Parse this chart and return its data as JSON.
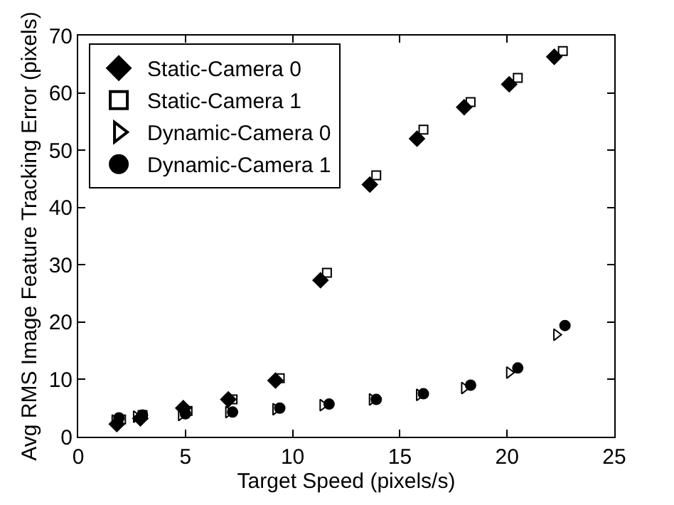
{
  "chart_data": {
    "type": "scatter",
    "xlabel": "Target Speed (pixels/s)",
    "ylabel": "Avg RMS Image Feature Tracking Error (pixels)",
    "xlim": [
      0,
      25
    ],
    "xticks": [
      0,
      5,
      10,
      15,
      20,
      25
    ],
    "ylim": [
      0,
      70
    ],
    "yticks": [
      0,
      10,
      20,
      30,
      40,
      50,
      60,
      70
    ],
    "legend": "top left",
    "series": [
      {
        "name": "Static-Camera 0",
        "color": "#000000",
        "marker": "diamond",
        "x": [
          1.8,
          2.9,
          4.9,
          7.0,
          9.2,
          11.3,
          13.6,
          15.8,
          18.0,
          20.1,
          22.2
        ],
        "values": [
          2.2,
          3.2,
          5.0,
          6.5,
          9.8,
          27.3,
          44.0,
          52.0,
          57.5,
          61.5,
          66.3
        ]
      },
      {
        "name": "Static-Camera 1",
        "color": "#000000",
        "marker": "square-open",
        "x": [
          2.0,
          3.0,
          5.1,
          7.2,
          9.4,
          11.6,
          13.9,
          16.1,
          18.3,
          20.5,
          22.6
        ],
        "values": [
          3.0,
          3.8,
          4.5,
          6.5,
          10.2,
          28.6,
          45.6,
          53.6,
          58.4,
          62.6,
          67.3
        ]
      },
      {
        "name": "Dynamic-Camera 0",
        "color": "#000000",
        "marker": "triangle-open",
        "x": [
          1.7,
          2.7,
          4.8,
          7.0,
          9.2,
          11.4,
          13.7,
          15.9,
          18.0,
          20.1,
          22.3
        ],
        "values": [
          2.8,
          3.5,
          3.8,
          4.3,
          4.8,
          5.5,
          6.5,
          7.3,
          8.5,
          11.2,
          17.8
        ]
      },
      {
        "name": "Dynamic-Camera 1",
        "color": "#000000",
        "marker": "circle",
        "x": [
          1.9,
          3.0,
          5.0,
          7.2,
          9.4,
          11.7,
          13.9,
          16.1,
          18.3,
          20.5,
          22.7
        ],
        "values": [
          3.3,
          3.8,
          4.0,
          4.3,
          5.0,
          5.7,
          6.5,
          7.5,
          9.0,
          12.0,
          19.4
        ]
      }
    ]
  }
}
